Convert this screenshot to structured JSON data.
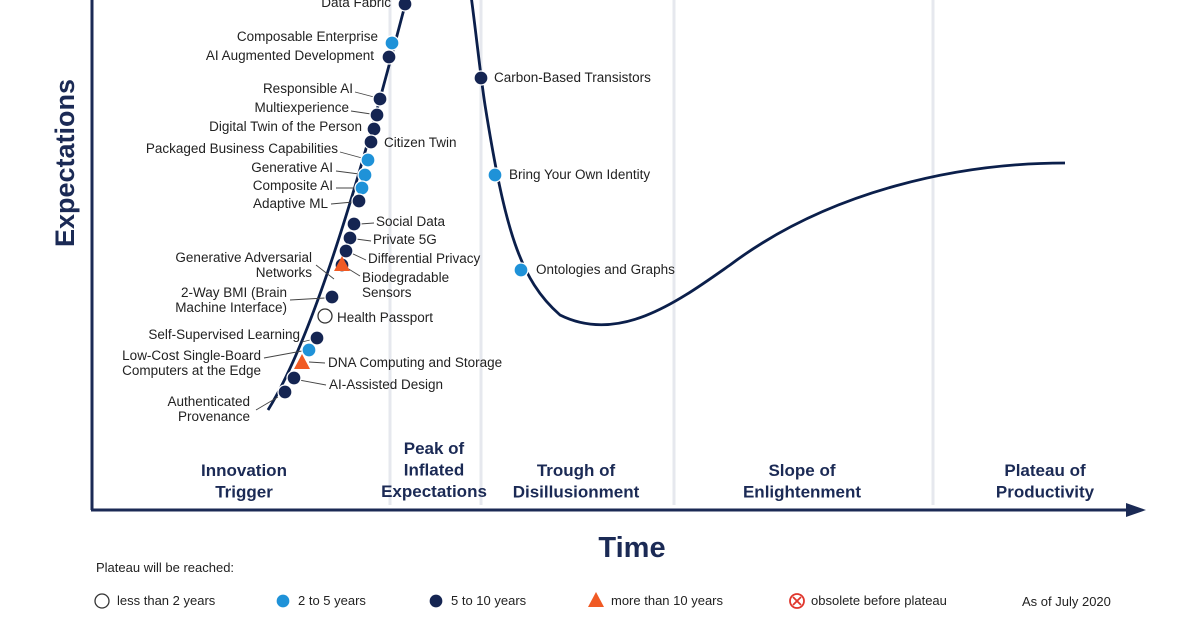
{
  "y_axis_title": "Expectations",
  "x_axis_title": "Time",
  "phases": [
    "Peak of|Inflated|Expectations",
    "Innovation|Trigger",
    "Trough of|Disillusionment",
    "Slope of|Enlightenment",
    "Plateau of|Productivity"
  ],
  "technologies": [
    {
      "name": "Data Fabric",
      "category": "5-10"
    },
    {
      "name": "Composable Enterprise",
      "category": "2-5"
    },
    {
      "name": "AI Augmented Development",
      "category": "5-10"
    },
    {
      "name": "Responsible AI",
      "category": "5-10"
    },
    {
      "name": "Multiexperience",
      "category": "5-10"
    },
    {
      "name": "Digital Twin of the Person",
      "category": "5-10"
    },
    {
      "name": "Citizen Twin",
      "category": "5-10"
    },
    {
      "name": "Packaged Business Capabilities",
      "category": "2-5"
    },
    {
      "name": "Generative AI",
      "category": "2-5"
    },
    {
      "name": "Composite AI",
      "category": "2-5"
    },
    {
      "name": "Adaptive ML",
      "category": "5-10"
    },
    {
      "name": "Social Data",
      "category": "5-10"
    },
    {
      "name": "Private 5G",
      "category": "5-10"
    },
    {
      "name": "Differential Privacy",
      "category": "5-10"
    },
    {
      "name": "Generative Adversarial|Networks",
      "category": "5-10"
    },
    {
      "name": "Biodegradable|Sensors",
      "category": ">10"
    },
    {
      "name": "2-Way BMI (Brain|Machine Interface)",
      "category": "5-10"
    },
    {
      "name": "Health Passport",
      "category": "<2"
    },
    {
      "name": "Self-Supervised Learning",
      "category": "5-10"
    },
    {
      "name": "Low-Cost Single-Board|Computers at the Edge",
      "category": "2-5"
    },
    {
      "name": "DNA Computing and Storage",
      "category": ">10"
    },
    {
      "name": "AI-Assisted Design",
      "category": "5-10"
    },
    {
      "name": "Authenticated|Provenance",
      "category": "5-10"
    },
    {
      "name": "Carbon-Based Transistors",
      "category": "5-10"
    },
    {
      "name": "Bring Your Own Identity",
      "category": "2-5"
    },
    {
      "name": "Ontologies and Graphs",
      "category": "2-5"
    }
  ],
  "legend": {
    "title": "Plateau will be reached:",
    "items": [
      {
        "label": "less than 2 years",
        "category": "<2"
      },
      {
        "label": "2 to 5 years",
        "category": "2-5"
      },
      {
        "label": "5 to 10 years",
        "category": "5-10"
      },
      {
        "label": "more than 10 years",
        "category": ">10"
      },
      {
        "label": "obsolete before plateau",
        "category": "obsolete"
      }
    ],
    "as_of": "As of July 2020"
  },
  "colors": {
    "curve": "#0b1f4b",
    "axis": "#1b2a55",
    "separator": "#e6e8ee",
    "five_to_ten": "#152552",
    "two_to_five": "#1f92d8",
    "more_than_ten": "#f05a24",
    "obsolete": "#e0362c",
    "less_than_two": "#ffffff"
  }
}
